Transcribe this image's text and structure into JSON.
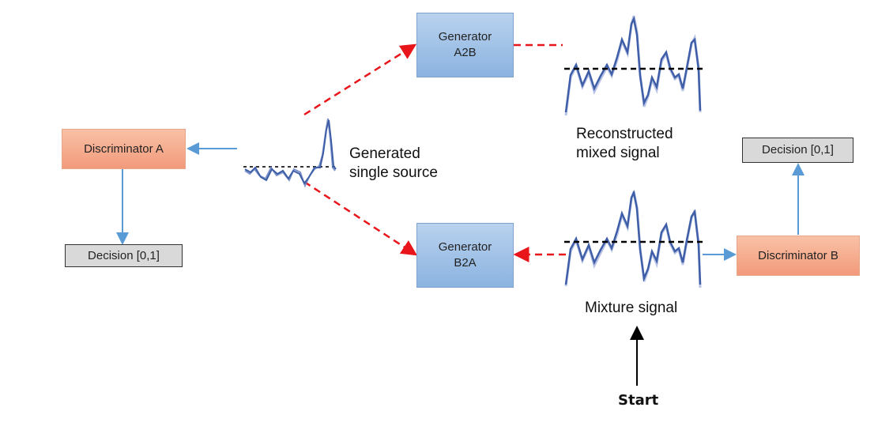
{
  "nodes": {
    "discriminator_a": "Discriminator A",
    "discriminator_b": "Discriminator B",
    "decision_a": "Decision [0,1]",
    "decision_b": "Decision [0,1]",
    "generator_a2b": "Generator\nA2B",
    "generator_b2a": "Generator\nB2A"
  },
  "labels": {
    "generated_single_source": "Generated\nsingle source",
    "reconstructed_mixed_signal": "Reconstructed\nmixed signal",
    "mixture_signal": "Mixture signal",
    "start": "Start"
  },
  "colors": {
    "dashed_arrow": "#e8161b",
    "solid_arrow": "#5b9bd5",
    "start_arrow": "#000000",
    "waveform": "#3f5ea8",
    "discriminator_fill": "#f4a587",
    "generator_fill": "#9cbfe6",
    "decision_fill": "#d9d9d9"
  }
}
